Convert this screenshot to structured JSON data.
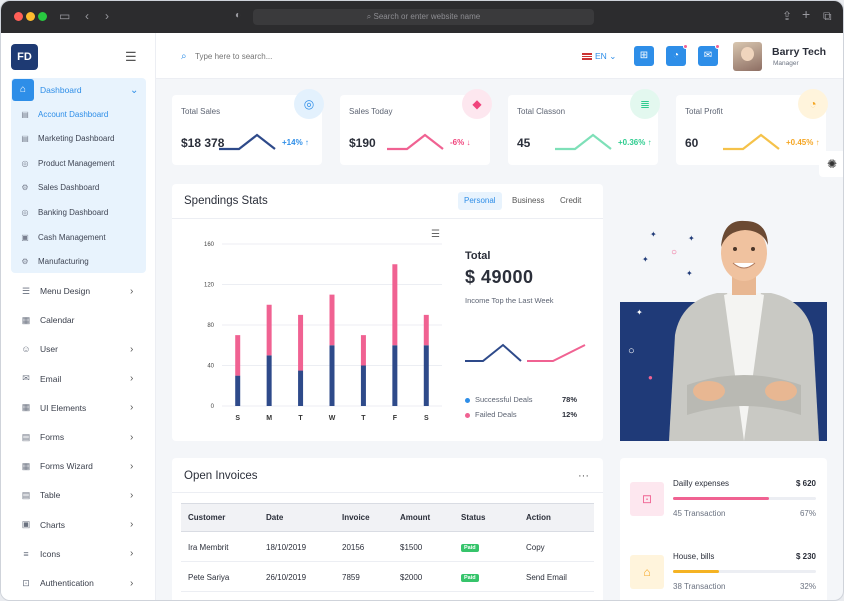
{
  "browser": {
    "url_placeholder": "Search or enter website name",
    "dots": [
      "#ff5f57",
      "#febc2e",
      "#28c840"
    ]
  },
  "brand": {
    "logo": "FD"
  },
  "sidebar": {
    "dashboard": "Dashboard",
    "sub_items": [
      {
        "label": "Account Dashboard",
        "icon": "list-icon",
        "active": true
      },
      {
        "label": "Marketing Dashboard",
        "icon": "list-icon"
      },
      {
        "label": "Product Management",
        "icon": "circle-icon"
      },
      {
        "label": "Sales Dashboard",
        "icon": "gear-icon"
      },
      {
        "label": "Banking Dashboard",
        "icon": "target-icon"
      },
      {
        "label": "Cash Management",
        "icon": "folder-icon"
      },
      {
        "label": "Manufacturing",
        "icon": "cog-icon"
      }
    ],
    "items": [
      {
        "label": "Menu Design",
        "icon": "menu-icon",
        "chevron": true
      },
      {
        "label": "Calendar",
        "icon": "calendar-icon",
        "chevron": false
      },
      {
        "label": "User",
        "icon": "user-icon",
        "chevron": true
      },
      {
        "label": "Email",
        "icon": "email-icon",
        "chevron": true
      },
      {
        "label": "UI Elements",
        "icon": "grid-icon",
        "chevron": true
      },
      {
        "label": "Forms",
        "icon": "form-icon",
        "chevron": true
      },
      {
        "label": "Forms Wizard",
        "icon": "wizard-icon",
        "chevron": true
      },
      {
        "label": "Table",
        "icon": "table-icon",
        "chevron": true
      },
      {
        "label": "Charts",
        "icon": "chart-icon",
        "chevron": true
      },
      {
        "label": "Icons",
        "icon": "icons-icon",
        "chevron": true
      },
      {
        "label": "Authentication",
        "icon": "lock-icon",
        "chevron": true
      }
    ]
  },
  "header": {
    "search_placeholder": "Type here to search...",
    "language": "EN",
    "user_name": "Barry Tech",
    "user_role": "Manager"
  },
  "stats": [
    {
      "title": "Total Sales",
      "value": "$18 378",
      "change": "+14%",
      "color": "#2e8ee8",
      "line": "#2e4a8a",
      "icon": "target-icon",
      "icon_bg": "#e3f1fd"
    },
    {
      "title": "Sales Today",
      "value": "$190",
      "change": "-6%",
      "color": "#f0447c",
      "line": "#f06292",
      "icon": "bag-icon",
      "icon_bg": "#fde7ef"
    },
    {
      "title": "Total Classon",
      "value": "45",
      "change": "+0.36%",
      "color": "#2ecc8f",
      "line": "#7ee0b8",
      "icon": "database-icon",
      "icon_bg": "#e3f8ef"
    },
    {
      "title": "Total Profit",
      "value": "60",
      "change": "+0.45%",
      "color": "#f5a623",
      "line": "#f5c24a",
      "icon": "pie-icon",
      "icon_bg": "#fff4dc"
    }
  ],
  "spendings": {
    "title": "Spendings Stats",
    "tabs": [
      "Personal",
      "Business",
      "Credit"
    ],
    "total_label": "Total",
    "total_value": "$ 49000",
    "total_sub": "Income Top the Last Week",
    "deals": [
      {
        "label": "Successful Deals",
        "value": "78%",
        "color": "#2e8ee8"
      },
      {
        "label": "Failed Deals",
        "value": "12%",
        "color": "#f06292"
      }
    ]
  },
  "chart_data": {
    "type": "bar",
    "categories": [
      "S",
      "M",
      "T",
      "W",
      "T",
      "F",
      "S"
    ],
    "series": [
      {
        "values": [
          30,
          50,
          35,
          60,
          40,
          60,
          60
        ],
        "color": "#2e4a8a"
      },
      {
        "values": [
          40,
          50,
          55,
          50,
          30,
          80,
          30
        ],
        "color": "#f06292"
      }
    ],
    "ylim": [
      0,
      160
    ],
    "yticks": [
      0,
      40,
      80,
      120,
      160
    ],
    "stacked": true
  },
  "invoices": {
    "title": "Open Invoices",
    "columns": [
      "Customer",
      "Date",
      "Invoice",
      "Amount",
      "Status",
      "Action"
    ],
    "rows": [
      {
        "customer": "Ira Membrit",
        "date": "18/10/2019",
        "invoice": "20156",
        "amount": "$1500",
        "status": "Paid",
        "action": "Copy"
      },
      {
        "customer": "Pete Sariya",
        "date": "26/10/2019",
        "invoice": "7859",
        "amount": "$2000",
        "status": "Paid",
        "action": "Send Email"
      }
    ]
  },
  "expenses": [
    {
      "title": "Dailly expenses",
      "amount": "$ 620",
      "sub": "45 Transaction",
      "pct": "67%",
      "fill": 0.67,
      "color": "#f06292",
      "icon": "lock-icon",
      "icon_bg": "#fde7ef",
      "icon_color": "#f06292"
    },
    {
      "title": "House, bills",
      "amount": "$ 230",
      "sub": "38 Transaction",
      "pct": "32%",
      "fill": 0.32,
      "color": "#f5b323",
      "icon": "home-icon",
      "icon_bg": "#fff4dc",
      "icon_color": "#f5a623"
    }
  ]
}
